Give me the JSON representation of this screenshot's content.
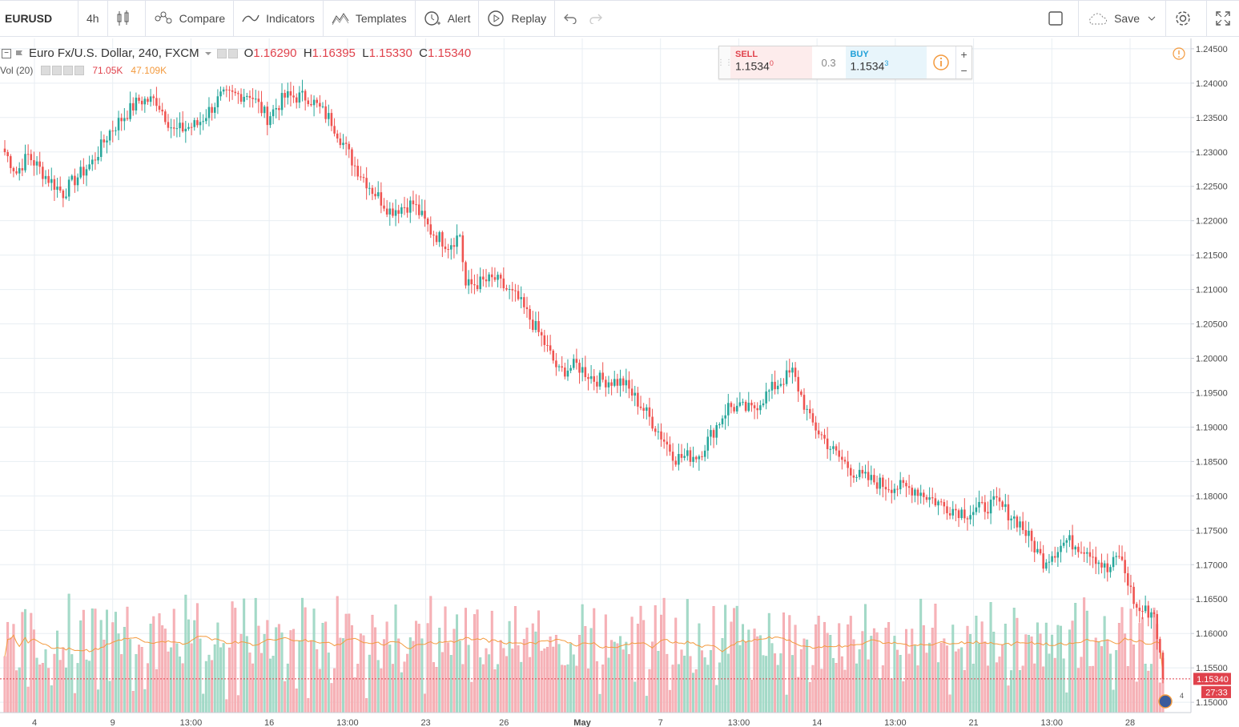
{
  "toolbar": {
    "symbol": "EURUSD",
    "interval": "4h",
    "compare": "Compare",
    "indicators": "Indicators",
    "templates": "Templates",
    "alert": "Alert",
    "replay": "Replay",
    "save": "Save"
  },
  "legend": {
    "title": "Euro Fx/U.S. Dollar, 240, FXCM",
    "o_label": "O",
    "o": "1.16290",
    "h_label": "H",
    "h": "1.16395",
    "l_label": "L",
    "l": "1.15330",
    "c_label": "C",
    "c": "1.15340"
  },
  "volume_legend": {
    "name": "Vol (20)",
    "vol": "71.05K",
    "ma": "47.109K"
  },
  "trade_panel": {
    "sell_label": "SELL",
    "sell_price": "1.1534",
    "sell_sup": "0",
    "spread": "0.3",
    "buy_label": "BUY",
    "buy_price": "1.1534",
    "buy_sup": "3"
  },
  "price_axis": {
    "last_price": "1.15340",
    "countdown": "27:33"
  },
  "colors": {
    "up": "#26a69a",
    "down": "#ef5350",
    "vol_up": "#a5dbc9",
    "vol_down": "#f7b3b8",
    "ma": "#f39a3e",
    "last_price": "#e0424c"
  },
  "chart_data": {
    "type": "candlestick",
    "title": "Euro Fx/U.S. Dollar, 240, FXCM",
    "ylim": [
      1.1485,
      1.2465
    ],
    "y_ticks": [
      "1.24500",
      "1.24000",
      "1.23500",
      "1.23000",
      "1.22500",
      "1.22000",
      "1.21500",
      "1.21000",
      "1.20500",
      "1.20000",
      "1.19500",
      "1.19000",
      "1.18500",
      "1.18000",
      "1.17500",
      "1.17000",
      "1.16500",
      "1.16000",
      "1.15500",
      "1.15000"
    ],
    "x_ticks": [
      "4",
      "9",
      "13:00",
      "16",
      "13:00",
      "23",
      "26",
      "May",
      "7",
      "13:00",
      "14",
      "13:00",
      "21",
      "13:00",
      "28"
    ],
    "close_anchors": [
      [
        0,
        1.23
      ],
      [
        4,
        1.227
      ],
      [
        8,
        1.2295
      ],
      [
        14,
        1.2265
      ],
      [
        20,
        1.224
      ],
      [
        24,
        1.226
      ],
      [
        30,
        1.2285
      ],
      [
        36,
        1.233
      ],
      [
        46,
        1.2375
      ],
      [
        52,
        1.2375
      ],
      [
        58,
        1.233
      ],
      [
        66,
        1.234
      ],
      [
        74,
        1.238
      ],
      [
        84,
        1.2385
      ],
      [
        90,
        1.235
      ],
      [
        96,
        1.238
      ],
      [
        104,
        1.238
      ],
      [
        112,
        1.2345
      ],
      [
        120,
        1.228
      ],
      [
        126,
        1.2245
      ],
      [
        132,
        1.2215
      ],
      [
        140,
        1.2225
      ],
      [
        146,
        1.2185
      ],
      [
        152,
        1.2165
      ],
      [
        156,
        1.218
      ],
      [
        158,
        1.2105
      ],
      [
        168,
        1.2115
      ],
      [
        176,
        1.2085
      ],
      [
        184,
        1.203
      ],
      [
        190,
        1.198
      ],
      [
        196,
        1.199
      ],
      [
        202,
        1.197
      ],
      [
        212,
        1.1965
      ],
      [
        220,
        1.192
      ],
      [
        230,
        1.1855
      ],
      [
        238,
        1.186
      ],
      [
        248,
        1.193
      ],
      [
        256,
        1.1925
      ],
      [
        264,
        1.196
      ],
      [
        270,
        1.198
      ],
      [
        276,
        1.191
      ],
      [
        284,
        1.1865
      ],
      [
        292,
        1.183
      ],
      [
        302,
        1.1815
      ],
      [
        312,
        1.181
      ],
      [
        322,
        1.1785
      ],
      [
        330,
        1.1775
      ],
      [
        340,
        1.179
      ],
      [
        348,
        1.176
      ],
      [
        356,
        1.1705
      ],
      [
        364,
        1.1735
      ],
      [
        372,
        1.172
      ],
      [
        378,
        1.169
      ],
      [
        382,
        1.1715
      ],
      [
        388,
        1.1635
      ],
      [
        394,
        1.163
      ],
      [
        397,
        1.1534
      ]
    ],
    "volume_ylim": [
      0,
      230000
    ],
    "volume_ma_last": 47109,
    "last_volume": 71050
  }
}
